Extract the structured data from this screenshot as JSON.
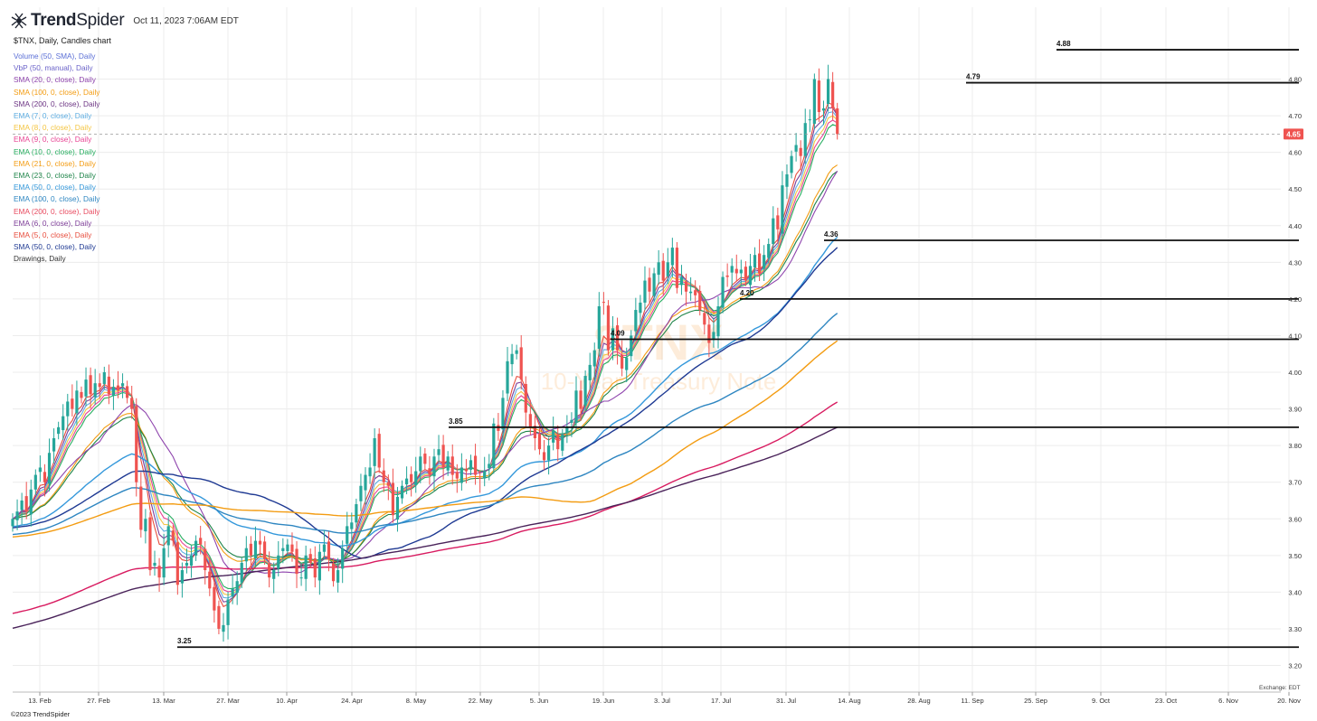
{
  "header": {
    "brand": "TrendSpider",
    "brand_bold": "Trend",
    "brand_light": "Spider",
    "timestamp": "Oct 11, 2023 7:06AM EDT",
    "logo_icon": "spider-logo-icon"
  },
  "chart_title": "$TNX, Daily, Candles chart",
  "indicators": [
    {
      "label": "Volume (50, SMA), Daily",
      "color": "#5b6fd6"
    },
    {
      "label": "VbP (50, manual), Daily",
      "color": "#6b63c9"
    },
    {
      "label": "SMA (20, 0, close), Daily",
      "color": "#8e44ad"
    },
    {
      "label": "SMA (100, 0, close), Daily",
      "color": "#f39c12"
    },
    {
      "label": "SMA (200, 0, close), Daily",
      "color": "#6c3483"
    },
    {
      "label": "EMA (7, 0, close), Daily",
      "color": "#5dade2"
    },
    {
      "label": "EMA (8, 0, close), Daily",
      "color": "#f4c542"
    },
    {
      "label": "EMA (9, 0, close), Daily",
      "color": "#e84393"
    },
    {
      "label": "EMA (10, 0, close), Daily",
      "color": "#27ae60"
    },
    {
      "label": "EMA (21, 0, close), Daily",
      "color": "#f39c12"
    },
    {
      "label": "EMA (23, 0, close), Daily",
      "color": "#1e8449"
    },
    {
      "label": "EMA (50, 0, close), Daily",
      "color": "#3498db"
    },
    {
      "label": "EMA (100, 0, close), Daily",
      "color": "#2e86c1"
    },
    {
      "label": "EMA (200, 0, close), Daily",
      "color": "#e84a5f"
    },
    {
      "label": "EMA (6, 0, close), Daily",
      "color": "#7d3c98"
    },
    {
      "label": "EMA (5, 0, close), Daily",
      "color": "#e74c3c"
    },
    {
      "label": "SMA (50, 0, close), Daily",
      "color": "#1f3a93"
    },
    {
      "label": "Drawings, Daily",
      "color": "#333333"
    }
  ],
  "watermark": {
    "ticker": "$TNX",
    "name": "10-Year Treasury Note"
  },
  "footer": {
    "copyright": "©2023 TrendSpider",
    "exchange": "Exchange: EDT"
  },
  "chart_data": {
    "type": "candlestick",
    "title": "$TNX, Daily, Candles chart",
    "x_axis_labels": [
      "13. Feb",
      "27. Feb",
      "13. Mar",
      "27. Mar",
      "10. Apr",
      "24. Apr",
      "8. May",
      "22. May",
      "5. Jun",
      "19. Jun",
      "3. Jul",
      "17. Jul",
      "31. Jul",
      "14. Aug",
      "28. Aug",
      "11. Sep",
      "25. Sep",
      "9. Oct",
      "23. Oct",
      "6. Nov",
      "20. Nov"
    ],
    "y_ticks": [
      3.2,
      3.3,
      3.4,
      3.5,
      3.6,
      3.7,
      3.8,
      3.9,
      4.0,
      4.1,
      4.2,
      4.3,
      4.4,
      4.5,
      4.6,
      4.7,
      4.8
    ],
    "y_range": [
      3.18,
      4.9
    ],
    "current_price": 4.65,
    "up_color": "#26a69a",
    "down_color": "#ef5350",
    "horizontal_levels": [
      {
        "value": 4.88,
        "label": "4.88",
        "from": "1-Oct"
      },
      {
        "value": 4.79,
        "label": "4.79",
        "from": "8-Sep"
      },
      {
        "value": 4.36,
        "label": "4.36",
        "from": "10-Aug"
      },
      {
        "value": 4.2,
        "label": "4.20",
        "from": "20-Jul"
      },
      {
        "value": 4.09,
        "label": "4.09",
        "from": "7-Jun"
      },
      {
        "value": 3.85,
        "label": "3.85",
        "from": "17-May"
      },
      {
        "value": 3.25,
        "label": "3.25",
        "from": "9-Mar"
      }
    ],
    "closes": [
      3.6,
      3.62,
      3.65,
      3.62,
      3.68,
      3.72,
      3.74,
      3.7,
      3.78,
      3.82,
      3.85,
      3.88,
      3.92,
      3.9,
      3.95,
      3.93,
      3.98,
      3.94,
      3.97,
      3.96,
      4.0,
      3.94,
      3.96,
      3.95,
      3.97,
      3.93,
      3.9,
      3.7,
      3.57,
      3.6,
      3.46,
      3.48,
      3.44,
      3.52,
      3.58,
      3.54,
      3.42,
      3.46,
      3.48,
      3.5,
      3.54,
      3.53,
      3.46,
      3.41,
      3.35,
      3.3,
      3.31,
      3.38,
      3.41,
      3.43,
      3.48,
      3.52,
      3.5,
      3.54,
      3.53,
      3.49,
      3.44,
      3.46,
      3.5,
      3.52,
      3.53,
      3.51,
      3.45,
      3.44,
      3.5,
      3.48,
      3.44,
      3.51,
      3.53,
      3.49,
      3.43,
      3.46,
      3.52,
      3.58,
      3.59,
      3.64,
      3.69,
      3.72,
      3.74,
      3.82,
      3.74,
      3.7,
      3.69,
      3.61,
      3.66,
      3.69,
      3.71,
      3.7,
      3.73,
      3.77,
      3.75,
      3.72,
      3.77,
      3.79,
      3.74,
      3.77,
      3.72,
      3.71,
      3.74,
      3.73,
      3.76,
      3.72,
      3.71,
      3.73,
      3.75,
      3.86,
      3.84,
      3.93,
      4.03,
      4.05,
      4.06,
      3.98,
      3.89,
      3.85,
      3.82,
      3.79,
      3.76,
      3.8,
      3.84,
      3.79,
      3.83,
      3.85,
      3.87,
      3.95,
      3.9,
      3.99,
      4.02,
      4.06,
      4.18,
      4.19,
      4.06,
      4.12,
      4.06,
      4.01,
      4.04,
      4.1,
      4.17,
      4.19,
      4.25,
      4.22,
      4.27,
      4.3,
      4.25,
      4.3,
      4.34,
      4.23,
      4.26,
      4.22,
      4.22,
      4.21,
      4.17,
      4.13,
      4.08,
      4.11,
      4.18,
      4.26,
      4.26,
      4.29,
      4.27,
      4.28,
      4.25,
      4.29,
      4.32,
      4.27,
      4.32,
      4.35,
      4.42,
      4.39,
      4.51,
      4.54,
      4.59,
      4.62,
      4.59,
      4.68,
      4.69,
      4.8,
      4.71,
      4.72,
      4.8,
      4.72,
      4.65
    ]
  }
}
